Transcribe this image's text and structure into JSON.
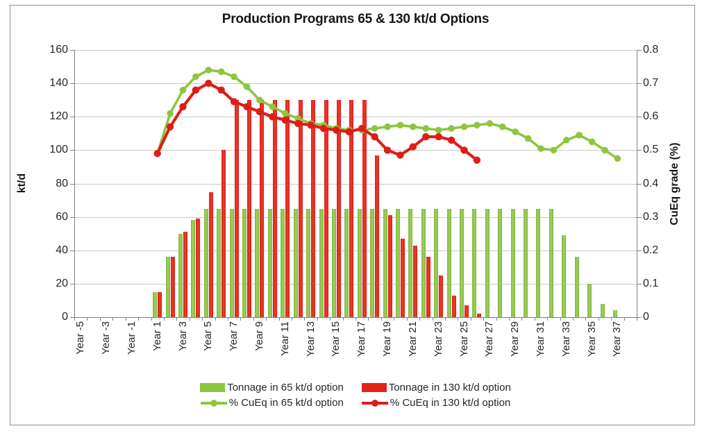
{
  "figure": {
    "title": "Production Programs 65 & 130 kt/d Options"
  },
  "colors": {
    "green": "#8cc63e",
    "red": "#dd1e18",
    "grid": "#c9c9c9",
    "axis": "#7f7f7f",
    "text": "#262626"
  },
  "chart_data": {
    "type": "combo-bar-line",
    "title": "Production Programs 65 & 130 kt/d Options",
    "grid": "horizontal",
    "legend_position": "bottom",
    "x_axis": {
      "tick_labels": [
        "Year -5",
        "Year -3",
        "Year -1",
        "Year 1",
        "Year 3",
        "Year 5",
        "Year 7",
        "Year 9",
        "Year 11",
        "Year 13",
        "Year 15",
        "Year 17",
        "Year 19",
        "Year 21",
        "Year 23",
        "Year 25",
        "Year 27",
        "Year 29",
        "Year 31",
        "Year 33",
        "Year 35",
        "Year 37"
      ]
    },
    "left_axis": {
      "title": "kt/d",
      "min": 0,
      "max": 160,
      "step": 20,
      "tick_labels": [
        "0",
        "20",
        "40",
        "60",
        "80",
        "100",
        "120",
        "140",
        "160"
      ]
    },
    "right_axis": {
      "title": "CuEq grade (%)",
      "min": 0,
      "max": 0.8,
      "step": 0.1,
      "tick_labels": [
        "0",
        "0.1",
        "0.2",
        "0.3",
        "0.4",
        "0.5",
        "0.6",
        "0.7",
        "0.8"
      ]
    },
    "series": [
      {
        "name": "Tonnage in 65 kt/d option",
        "type": "bar",
        "axis": "left",
        "color": "#8cc63e",
        "first_year": 1,
        "values": [
          15,
          36,
          50,
          58,
          65,
          65,
          65,
          65,
          65,
          65,
          65,
          65,
          65,
          65,
          65,
          65,
          65,
          65,
          65,
          65,
          65,
          65,
          65,
          65,
          65,
          65,
          65,
          65,
          65,
          65,
          65,
          65,
          49,
          36,
          20,
          8,
          4
        ]
      },
      {
        "name": "Tonnage in 130 kt/d option",
        "type": "bar",
        "axis": "left",
        "color": "#e2231a",
        "first_year": 1,
        "values": [
          15,
          36,
          51,
          59,
          75,
          100,
          130,
          130,
          130,
          130,
          130,
          130,
          130,
          130,
          130,
          130,
          130,
          97,
          61,
          47,
          43,
          36,
          25,
          13,
          7,
          2
        ]
      },
      {
        "name": "% CuEq in 65 kt/d option",
        "type": "line",
        "axis": "right",
        "color": "#8cc63e",
        "first_year": 1,
        "values": [
          0.49,
          0.61,
          0.68,
          0.72,
          0.74,
          0.735,
          0.72,
          0.69,
          0.65,
          0.63,
          0.61,
          0.595,
          0.58,
          0.575,
          0.565,
          0.56,
          0.56,
          0.565,
          0.57,
          0.575,
          0.57,
          0.565,
          0.56,
          0.565,
          0.57,
          0.575,
          0.58,
          0.57,
          0.555,
          0.535,
          0.505,
          0.5,
          0.53,
          0.545,
          0.525,
          0.5,
          0.475
        ]
      },
      {
        "name": "% CuEq in 130 kt/d option",
        "type": "line",
        "axis": "right",
        "color": "#dd1e18",
        "first_year": 1,
        "values": [
          0.49,
          0.57,
          0.63,
          0.68,
          0.7,
          0.68,
          0.645,
          0.63,
          0.615,
          0.6,
          0.59,
          0.58,
          0.575,
          0.565,
          0.56,
          0.555,
          0.565,
          0.54,
          0.5,
          0.485,
          0.51,
          0.54,
          0.54,
          0.53,
          0.5,
          0.47
        ]
      }
    ]
  }
}
